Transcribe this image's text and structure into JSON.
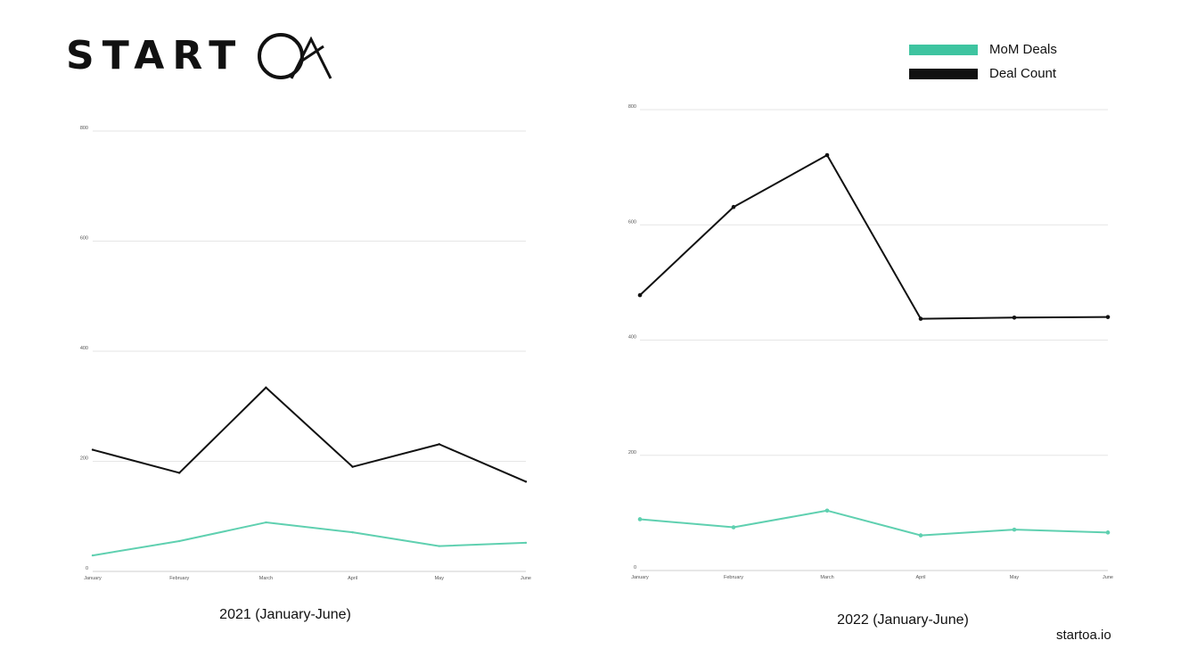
{
  "logo": {
    "text": "START",
    "mark_icon": "oa-circle-logo-icon"
  },
  "legend": [
    {
      "label": "MoM Deals",
      "color": "#3ec4a0"
    },
    {
      "label": "Deal Count",
      "color": "#111111"
    }
  ],
  "footer": {
    "text": "startoa.io"
  },
  "chart_data": [
    {
      "type": "line",
      "title": "",
      "caption": "2021 (January-June)",
      "categories": [
        "January",
        "February",
        "March",
        "April",
        "May",
        "June"
      ],
      "ylim": [
        0,
        800
      ],
      "yticks": [
        "0",
        "200",
        "400",
        "600",
        "800"
      ],
      "grid": true,
      "series": [
        {
          "name": "Deal Count",
          "color": "#111111",
          "values": [
            221,
            179,
            334,
            190,
            231,
            163
          ],
          "markers": false
        },
        {
          "name": "MoM Deals",
          "color": "#5fd0b0",
          "values": [
            29,
            55,
            89,
            71,
            46,
            52
          ],
          "markers": false
        }
      ]
    },
    {
      "type": "line",
      "title": "",
      "caption": "2022 (January-June)",
      "categories": [
        "January",
        "February",
        "March",
        "April",
        "May",
        "June"
      ],
      "ylim": [
        0,
        800
      ],
      "yticks": [
        "0",
        "200",
        "400",
        "600",
        "800"
      ],
      "grid": true,
      "series": [
        {
          "name": "Deal Count",
          "color": "#111111",
          "values": [
            478,
            631,
            721,
            437,
            439,
            440
          ],
          "markers": true
        },
        {
          "name": "MoM Deals",
          "color": "#5fd0b0",
          "values": [
            89,
            75,
            104,
            61,
            71,
            66
          ],
          "markers": true
        }
      ]
    }
  ]
}
